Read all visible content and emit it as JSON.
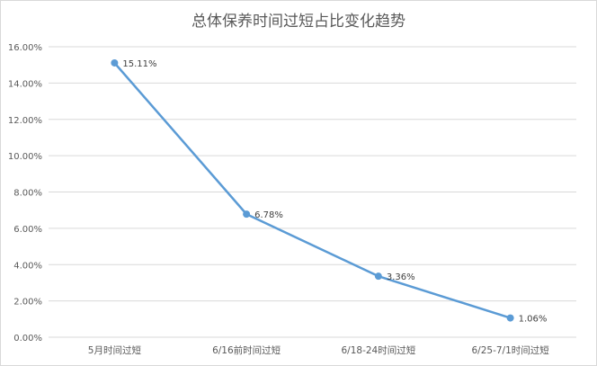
{
  "chart_data": {
    "type": "line",
    "title": "总体保养时间过短占比变化趋势",
    "categories": [
      "5月时间过短",
      "6/16前时间过短",
      "6/18-24时间过短",
      "6/25-7/1时间过短"
    ],
    "values": [
      15.11,
      6.78,
      3.36,
      1.06
    ],
    "data_labels": [
      "15.11%",
      "6.78%",
      "3.36%",
      "1.06%"
    ],
    "y_ticks": [
      "0.00%",
      "2.00%",
      "4.00%",
      "6.00%",
      "8.00%",
      "10.00%",
      "12.00%",
      "14.00%",
      "16.00%"
    ],
    "ylim": [
      0,
      16
    ],
    "grid": true,
    "legend": "none",
    "colors": {
      "line": "#5b9bd5",
      "grid": "#d9d9d9",
      "text": "#595959"
    }
  }
}
